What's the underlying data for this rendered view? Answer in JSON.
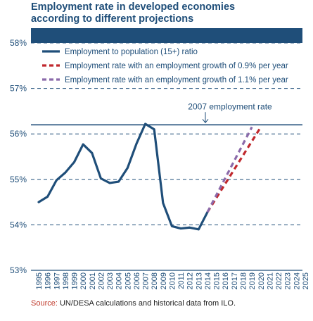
{
  "title_lines": [
    "Employment rate in developed economies",
    "according to different projections"
  ],
  "source": {
    "label": "Source:",
    "text": " UN/DESA calculations and historical data from ILO."
  },
  "annotation": "2007 employment rate",
  "colors": {
    "header_band": "#1f4e79",
    "axis_text": "#1f4e79",
    "reference_line": "#1f4e79",
    "gridline": "#1f4e79"
  },
  "chart_data": {
    "type": "line",
    "title": "Employment rate in developed economies according to different projections",
    "xlabel": "",
    "ylabel": "",
    "xlim": [
      1995,
      2025
    ],
    "ylim": [
      53,
      58
    ],
    "y_ticks": [
      53,
      54,
      55,
      56,
      57,
      58
    ],
    "y_tick_format": "percent",
    "grid": "horizontal-dashed",
    "legend_position": "top-left",
    "x_ticks": [
      "1995",
      "1996",
      "1997",
      "1998",
      "1999",
      "2000",
      "2001",
      "2002",
      "2003",
      "2004",
      "2005",
      "2006",
      "2007",
      "2008",
      "2009",
      "2010",
      "2011",
      "2012",
      "2013",
      "2014",
      "2015",
      "2016",
      "2017",
      "2018",
      "2019",
      "2020",
      "2021",
      "2022",
      "2023",
      "2024",
      "2025"
    ],
    "reference_line": {
      "value": 56.2,
      "label": "2007 employment rate"
    },
    "series": [
      {
        "name": "Employment to population (15+) ratio",
        "color": "#1f4e79",
        "style": "solid",
        "x": [
          1995,
          1996,
          1997,
          1998,
          1999,
          2000,
          2001,
          2002,
          2003,
          2004,
          2005,
          2006,
          2007,
          2008,
          2009,
          2010,
          2011,
          2012,
          2013,
          2014
        ],
        "values": [
          54.5,
          54.62,
          54.98,
          55.15,
          55.38,
          55.77,
          55.58,
          55.02,
          54.92,
          54.95,
          55.25,
          55.78,
          56.22,
          56.1,
          54.48,
          53.97,
          53.92,
          53.94,
          53.9,
          54.28
        ]
      },
      {
        "name": "Employment rate with an employment growth of 0.9% per year",
        "color": "#c0282d",
        "style": "dashed",
        "x": [
          2014,
          2020
        ],
        "values": [
          54.28,
          56.15
        ]
      },
      {
        "name": "Employment rate with an employment growth of 1.1% per year",
        "color": "#8b6aaa",
        "style": "dashed",
        "x": [
          2014,
          2019
        ],
        "values": [
          54.28,
          56.15
        ]
      }
    ]
  }
}
